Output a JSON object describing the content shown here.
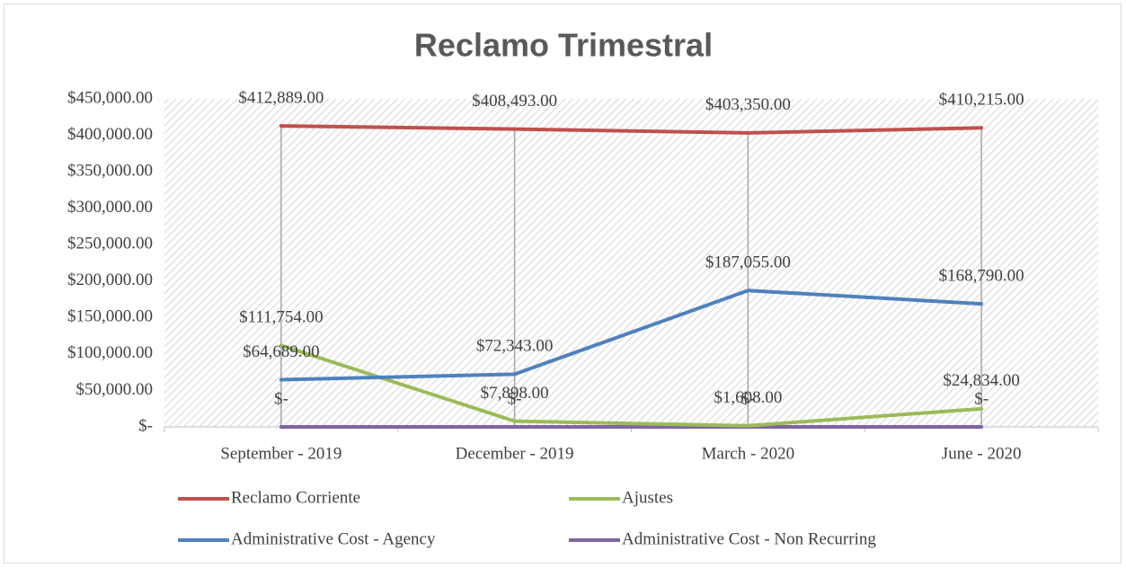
{
  "chart_data": {
    "type": "line",
    "title": "Reclamo Trimestral",
    "categories": [
      "September - 2019",
      "December - 2019",
      "March - 2020",
      "June - 2020"
    ],
    "ylim": [
      0,
      450000
    ],
    "yticks": [
      {
        "value": 0,
        "label": "$-"
      },
      {
        "value": 50000,
        "label": "$50,000.00"
      },
      {
        "value": 100000,
        "label": "$100,000.00"
      },
      {
        "value": 150000,
        "label": "$150,000.00"
      },
      {
        "value": 200000,
        "label": "$200,000.00"
      },
      {
        "value": 250000,
        "label": "$250,000.00"
      },
      {
        "value": 300000,
        "label": "$300,000.00"
      },
      {
        "value": 350000,
        "label": "$350,000.00"
      },
      {
        "value": 400000,
        "label": "$400,000.00"
      },
      {
        "value": 450000,
        "label": "$450,000.00"
      }
    ],
    "series": [
      {
        "name": "Reclamo Corriente",
        "color": "#c0504d",
        "values": [
          412889,
          408493,
          403350,
          410215
        ],
        "value_labels": [
          "$412,889.00",
          "$408,493.00",
          "$403,350.00",
          "$410,215.00"
        ]
      },
      {
        "name": "Ajustes",
        "color": "#9bbb59",
        "values": [
          111754,
          7898,
          1608,
          24834
        ],
        "value_labels": [
          "$111,754.00",
          "$7,898.00",
          "$1,608.00",
          "$24,834.00"
        ]
      },
      {
        "name": "Administrative Cost - Agency",
        "color": "#4f81bd",
        "values": [
          64689,
          72343,
          187055,
          168790
        ],
        "value_labels": [
          "$64,689.00",
          "$72,343.00",
          "$187,055.00",
          "$168,790.00"
        ]
      },
      {
        "name": "Administrative Cost - Non Recurring",
        "color": "#8064a2",
        "values": [
          0,
          0,
          0,
          0
        ],
        "value_labels": [
          "$-",
          "$-",
          "$-",
          "$-"
        ]
      }
    ]
  }
}
